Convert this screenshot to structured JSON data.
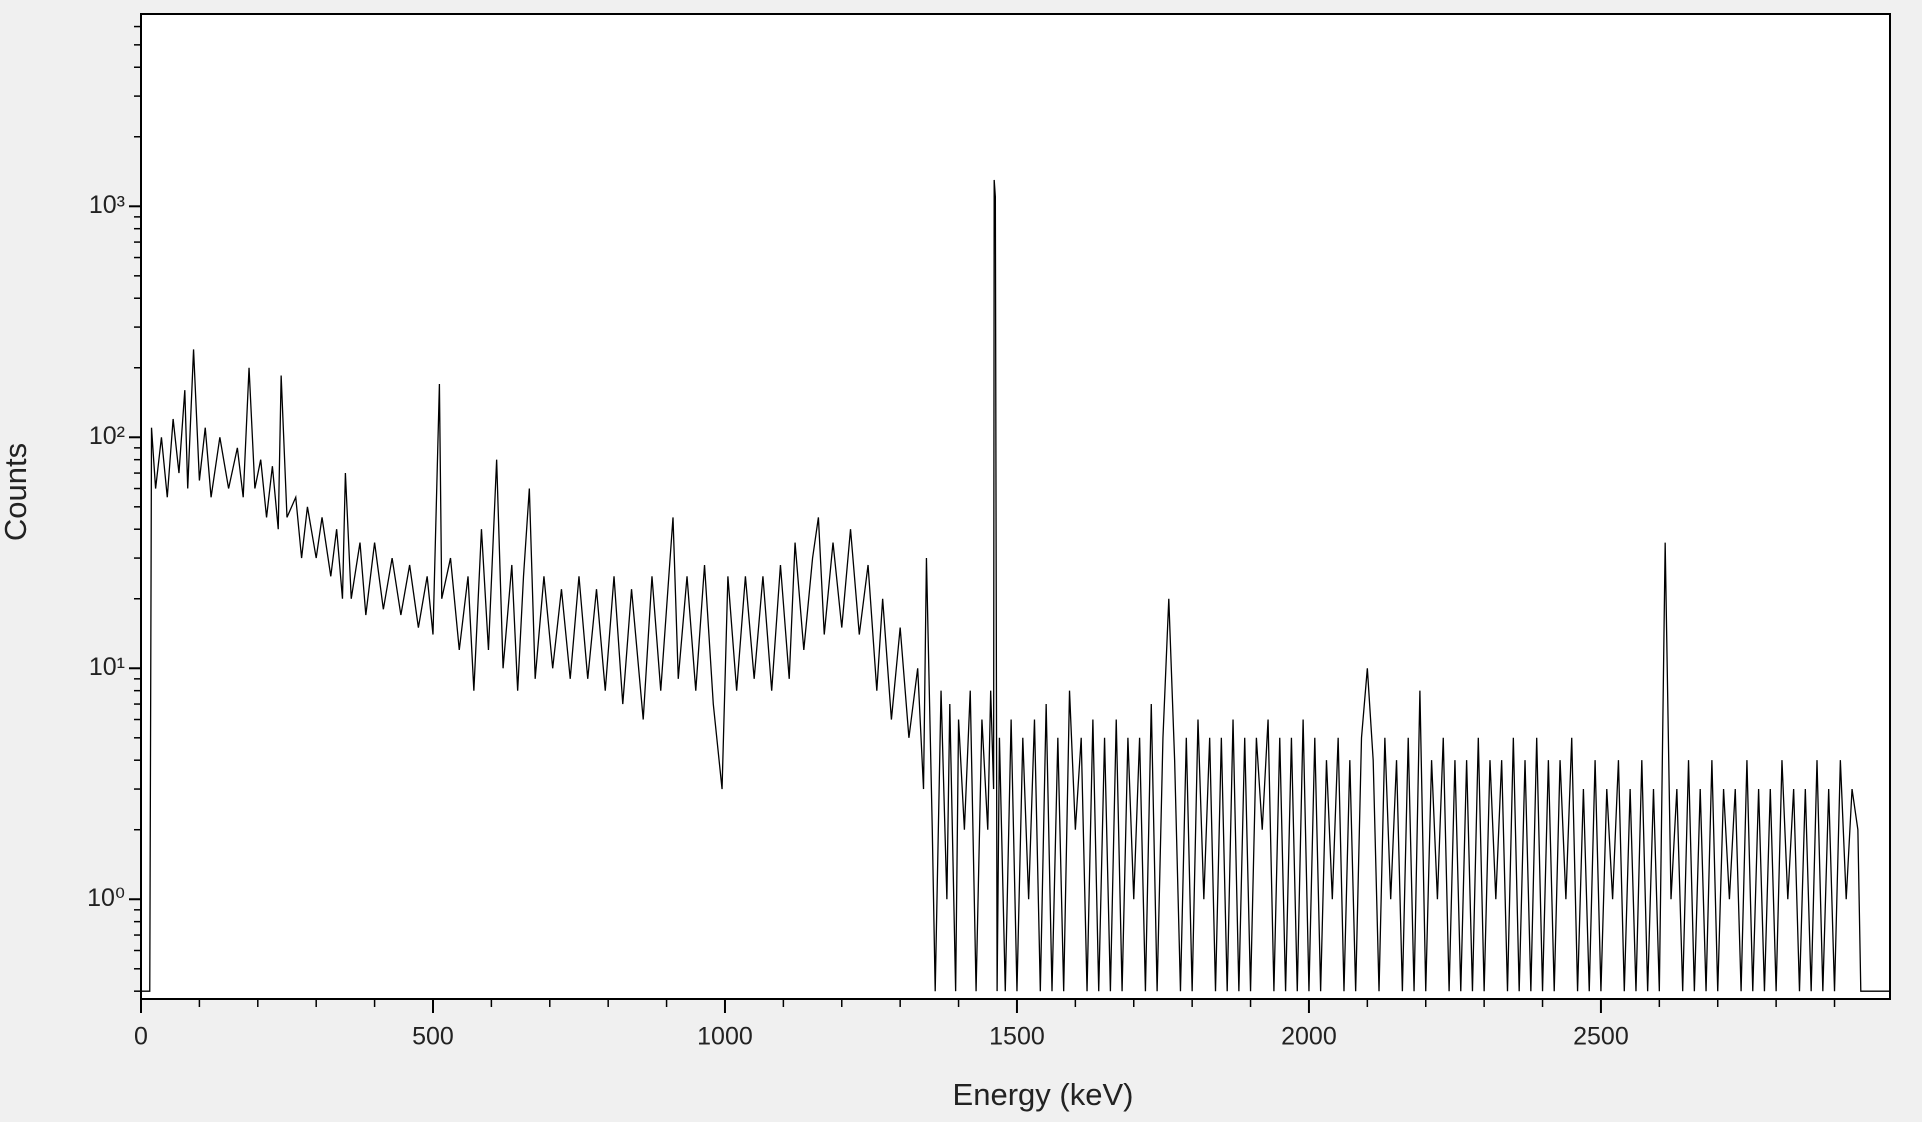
{
  "chart_data": {
    "type": "line",
    "x_label": "Energy (keV)",
    "y_label": "Counts",
    "color": "#000000",
    "log_y": true,
    "xlim": [
      0,
      2995
    ],
    "ylim": [
      0.37,
      6800
    ],
    "xticks": [
      0,
      500,
      1000,
      1500,
      2000,
      2500
    ],
    "x_minor_ticks": [
      100,
      200,
      300,
      400,
      600,
      700,
      800,
      900,
      1100,
      1200,
      1300,
      1400,
      1600,
      1700,
      1800,
      1900,
      2100,
      2200,
      2300,
      2400,
      2600,
      2700,
      2800,
      2900
    ],
    "yticks": [
      {
        "value": 1,
        "label": "10⁰"
      },
      {
        "value": 10,
        "label": "10¹"
      },
      {
        "value": 100,
        "label": "10²"
      },
      {
        "value": 1000,
        "label": "10³"
      }
    ],
    "y_minor_ticks": [
      0.4,
      0.5,
      0.6,
      0.7,
      0.8,
      0.9,
      2,
      3,
      4,
      5,
      6,
      7,
      8,
      9,
      20,
      30,
      40,
      50,
      60,
      70,
      80,
      90,
      200,
      300,
      400,
      500,
      600,
      700,
      800,
      900,
      2000,
      3000,
      4000,
      5000,
      6000
    ],
    "x": [
      0,
      15,
      18,
      25,
      35,
      45,
      55,
      65,
      75,
      80,
      90,
      100,
      110,
      120,
      135,
      150,
      165,
      175,
      185,
      195,
      205,
      215,
      225,
      235,
      240,
      250,
      265,
      275,
      285,
      300,
      310,
      325,
      335,
      345,
      350,
      360,
      375,
      385,
      400,
      415,
      430,
      445,
      460,
      475,
      490,
      500,
      511,
      515,
      530,
      545,
      560,
      570,
      583,
      595,
      609,
      620,
      635,
      645,
      655,
      665,
      675,
      690,
      705,
      720,
      735,
      750,
      765,
      780,
      795,
      810,
      825,
      840,
      860,
      875,
      890,
      911,
      920,
      935,
      950,
      965,
      980,
      995,
      1005,
      1020,
      1035,
      1050,
      1065,
      1080,
      1095,
      1110,
      1120,
      1135,
      1150,
      1160,
      1170,
      1185,
      1200,
      1215,
      1230,
      1245,
      1260,
      1270,
      1285,
      1300,
      1315,
      1330,
      1340,
      1345,
      1355,
      1360,
      1370,
      1380,
      1385,
      1395,
      1400,
      1410,
      1420,
      1430,
      1440,
      1450,
      1455,
      1460,
      1461,
      1463,
      1466,
      1470,
      1480,
      1490,
      1500,
      1510,
      1520,
      1530,
      1540,
      1550,
      1560,
      1570,
      1580,
      1590,
      1600,
      1610,
      1620,
      1630,
      1640,
      1650,
      1660,
      1670,
      1680,
      1690,
      1700,
      1710,
      1720,
      1730,
      1740,
      1750,
      1760,
      1770,
      1780,
      1790,
      1800,
      1810,
      1820,
      1830,
      1840,
      1850,
      1860,
      1870,
      1880,
      1890,
      1900,
      1910,
      1920,
      1930,
      1940,
      1950,
      1960,
      1970,
      1980,
      1990,
      2000,
      2010,
      2020,
      2030,
      2040,
      2050,
      2060,
      2070,
      2080,
      2090,
      2100,
      2110,
      2120,
      2130,
      2140,
      2150,
      2160,
      2170,
      2180,
      2190,
      2200,
      2210,
      2220,
      2230,
      2240,
      2250,
      2260,
      2270,
      2280,
      2290,
      2300,
      2310,
      2320,
      2330,
      2340,
      2350,
      2360,
      2370,
      2380,
      2390,
      2400,
      2410,
      2420,
      2430,
      2440,
      2450,
      2460,
      2470,
      2480,
      2490,
      2500,
      2510,
      2520,
      2530,
      2540,
      2550,
      2560,
      2570,
      2580,
      2590,
      2600,
      2610,
      2620,
      2630,
      2640,
      2650,
      2660,
      2670,
      2680,
      2690,
      2700,
      2710,
      2720,
      2730,
      2740,
      2750,
      2760,
      2770,
      2780,
      2790,
      2800,
      2810,
      2820,
      2830,
      2840,
      2850,
      2860,
      2870,
      2880,
      2890,
      2900,
      2910,
      2920,
      2930,
      2940,
      2945,
      2995
    ],
    "values": [
      0.4,
      0.4,
      110,
      60,
      100,
      55,
      120,
      70,
      160,
      60,
      240,
      65,
      110,
      55,
      100,
      60,
      90,
      55,
      200,
      60,
      80,
      45,
      75,
      40,
      185,
      45,
      55,
      30,
      50,
      30,
      45,
      25,
      40,
      20,
      70,
      20,
      35,
      17,
      35,
      18,
      30,
      17,
      28,
      15,
      25,
      14,
      170,
      20,
      30,
      12,
      25,
      8,
      40,
      12,
      80,
      10,
      28,
      8,
      25,
      60,
      9,
      25,
      10,
      22,
      9,
      25,
      9,
      22,
      8,
      25,
      7,
      22,
      6,
      25,
      8,
      45,
      9,
      25,
      8,
      28,
      7,
      3,
      25,
      8,
      25,
      9,
      25,
      8,
      28,
      9,
      35,
      12,
      30,
      45,
      14,
      35,
      15,
      40,
      14,
      28,
      8,
      20,
      6,
      15,
      5,
      10,
      3,
      30,
      2,
      0.4,
      8,
      1,
      7,
      0.4,
      6,
      2,
      8,
      0.4,
      6,
      2,
      8,
      3,
      1300,
      1100,
      0.4,
      5,
      0.4,
      6,
      0.4,
      5,
      1,
      6,
      0.4,
      7,
      0.4,
      5,
      0.4,
      8,
      2,
      5,
      0.4,
      6,
      0.4,
      5,
      0.4,
      6,
      0.4,
      5,
      1,
      5,
      0.4,
      7,
      0.4,
      5,
      20,
      4,
      0.4,
      5,
      0.4,
      6,
      1,
      5,
      0.4,
      5,
      0.4,
      6,
      0.4,
      5,
      0.4,
      5,
      2,
      6,
      0.4,
      5,
      0.4,
      5,
      0.4,
      6,
      0.4,
      5,
      0.4,
      4,
      1,
      5,
      0.4,
      4,
      0.4,
      5,
      10,
      4,
      0.4,
      5,
      1,
      4,
      0.4,
      5,
      0.4,
      8,
      0.4,
      4,
      1,
      5,
      0.4,
      4,
      0.4,
      4,
      0.4,
      5,
      0.4,
      4,
      1,
      4,
      0.4,
      5,
      0.4,
      4,
      0.4,
      5,
      0.4,
      4,
      0.4,
      4,
      1,
      5,
      0.4,
      3,
      0.4,
      4,
      0.4,
      3,
      1,
      4,
      0.4,
      3,
      0.4,
      4,
      0.4,
      3,
      0.4,
      35,
      1,
      3,
      0.4,
      4,
      0.4,
      3,
      0.4,
      4,
      0.4,
      3,
      1,
      3,
      0.4,
      4,
      0.4,
      3,
      0.4,
      3,
      0.4,
      4,
      1,
      3,
      0.4,
      3,
      0.4,
      4,
      0.4,
      3,
      0.4,
      4,
      1,
      3,
      2,
      0.4,
      0.4
    ]
  }
}
